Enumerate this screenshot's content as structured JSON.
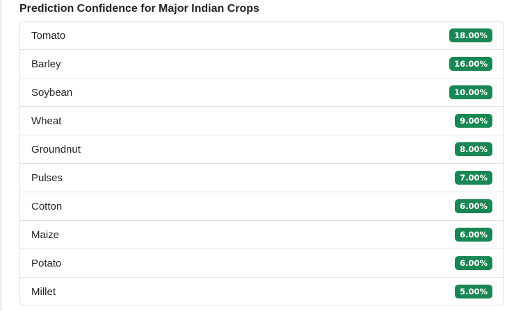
{
  "title": "Prediction Confidence for Major Indian Crops",
  "colors": {
    "badge": "#198754",
    "border": "#dee2e6",
    "text": "#212529"
  },
  "crops": [
    {
      "name": "Tomato",
      "confidence": "18.00%"
    },
    {
      "name": "Barley",
      "confidence": "16.00%"
    },
    {
      "name": "Soybean",
      "confidence": "10.00%"
    },
    {
      "name": "Wheat",
      "confidence": "9.00%"
    },
    {
      "name": "Groundnut",
      "confidence": "8.00%"
    },
    {
      "name": "Pulses",
      "confidence": "7.00%"
    },
    {
      "name": "Cotton",
      "confidence": "6.00%"
    },
    {
      "name": "Maize",
      "confidence": "6.00%"
    },
    {
      "name": "Potato",
      "confidence": "6.00%"
    },
    {
      "name": "Millet",
      "confidence": "5.00%"
    }
  ]
}
